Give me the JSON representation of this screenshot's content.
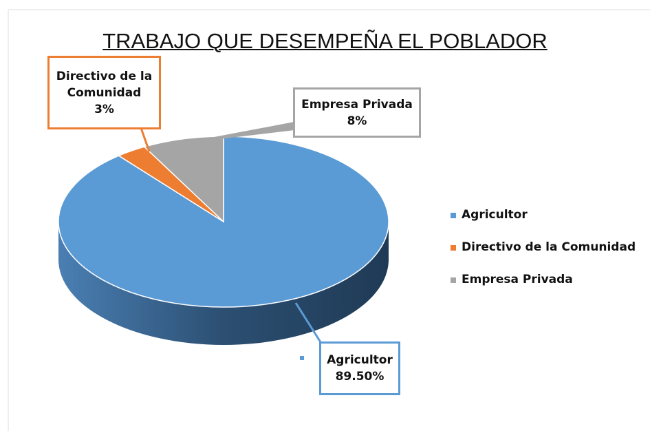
{
  "chart_data": {
    "type": "pie3d",
    "title": "TRABAJO QUE DESEMPEÑA EL POBLADOR",
    "categories": [
      "Agricultor",
      "Directivo de la Comunidad",
      "Empresa Privada"
    ],
    "values": [
      89.5,
      3,
      8
    ],
    "value_labels": [
      "89.50%",
      "3%",
      "8%"
    ],
    "colors": [
      "#5b9bd5",
      "#ed7d31",
      "#a5a5a5"
    ],
    "legend": "right"
  }
}
